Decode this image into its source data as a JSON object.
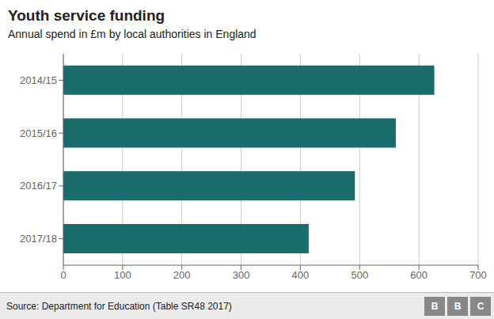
{
  "chart_data": {
    "type": "bar",
    "title": "Youth service funding",
    "subtitle": "Annual spend in £m by local authorities in England",
    "categories": [
      "2017/18",
      "2016/17",
      "2015/16",
      "2014/15"
    ],
    "values": [
      414,
      492,
      561,
      626
    ],
    "color": "#1a6b6b",
    "orientation": "horizontal",
    "xlim": [
      0,
      700
    ],
    "xticks": [
      0,
      100,
      200,
      300,
      400,
      500,
      600,
      700
    ],
    "grid": true,
    "source": "Source: Department for Education (Table SR48 2017)",
    "logo": "BBC"
  }
}
